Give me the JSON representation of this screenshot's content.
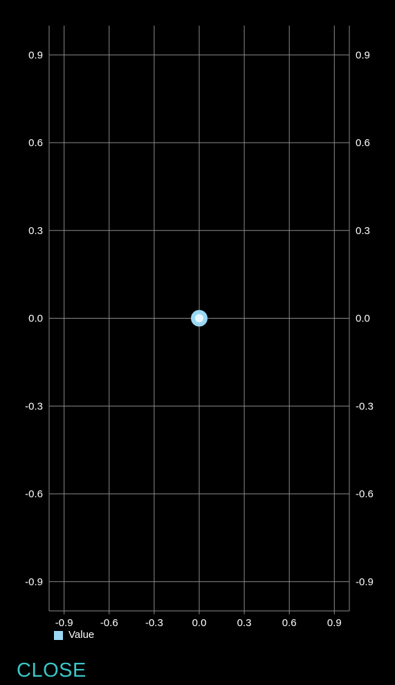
{
  "chart_data": {
    "type": "scatter",
    "x_ticks": [
      "-0.9",
      "-0.6",
      "-0.3",
      "0.0",
      "0.3",
      "0.6",
      "0.9"
    ],
    "y_ticks": [
      "0.9",
      "0.6",
      "0.3",
      "0.0",
      "-0.3",
      "-0.6",
      "-0.9"
    ],
    "xlim": [
      -1.0,
      1.0
    ],
    "ylim": [
      -1.0,
      1.0
    ],
    "grid": true,
    "legend_position": "bottom-left",
    "series": [
      {
        "name": "Value",
        "color": "#9ad8f4",
        "points": [
          {
            "x": 0.0,
            "y": 0.0
          }
        ]
      }
    ]
  },
  "footer": {
    "close_label": "CLOSE",
    "close_color": "#3cc7c7"
  },
  "colors": {
    "background": "#000000",
    "grid": "#8c8c8c",
    "text": "#ffffff"
  }
}
